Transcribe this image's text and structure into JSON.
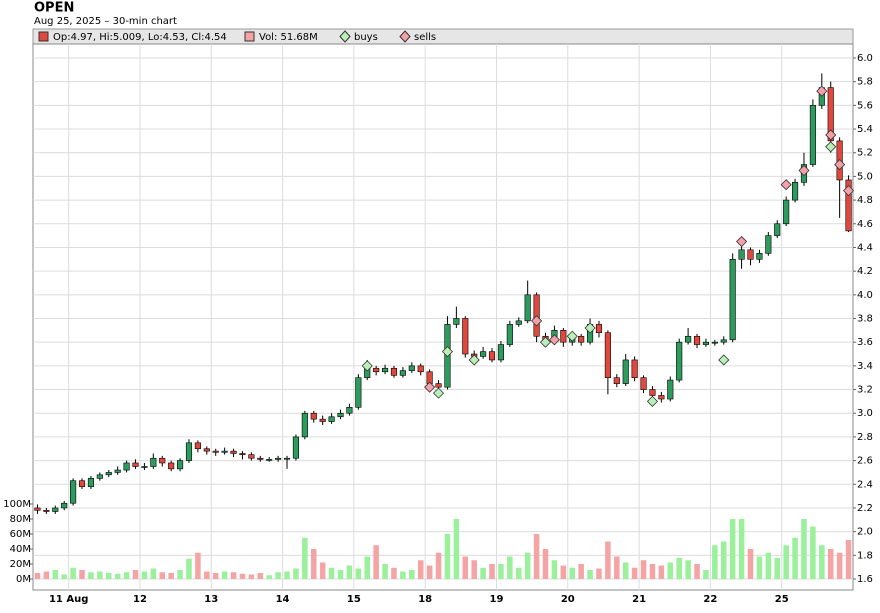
{
  "chart_data": {
    "type": "candlestick",
    "title": "OPEN",
    "subtitle": "Aug 25, 2025 – 30-min chart",
    "legend": [
      "Op:4.97, Hi:5.009, Lo:4.53, Cl:4.54",
      "Vol: 51.68M",
      "buys",
      "sells"
    ],
    "up_color": "#2e9b5e",
    "down_color": "#e0483e",
    "volume_up_color": "#9bf09b",
    "volume_down_color": "#f4a4a4",
    "buy_color": "#b8f0b8",
    "sell_color": "#f4a0a8",
    "grid": true,
    "categories": [
      null,
      null,
      null,
      null,
      "11 Aug",
      null,
      null,
      null,
      null,
      null,
      null,
      null,
      "12",
      null,
      null,
      null,
      null,
      null,
      null,
      null,
      "13",
      null,
      null,
      null,
      null,
      null,
      null,
      null,
      "14",
      null,
      null,
      null,
      null,
      null,
      null,
      null,
      "15",
      null,
      null,
      null,
      null,
      null,
      null,
      null,
      "18",
      null,
      null,
      null,
      null,
      null,
      null,
      null,
      "19",
      null,
      null,
      null,
      null,
      null,
      null,
      null,
      "20",
      null,
      null,
      null,
      null,
      null,
      null,
      null,
      "21",
      null,
      null,
      null,
      null,
      null,
      null,
      null,
      "22",
      null,
      null,
      null,
      null,
      null,
      null,
      null,
      "25",
      null,
      null,
      null,
      null,
      null,
      null,
      null
    ],
    "open": [
      2.2,
      2.18,
      2.17,
      2.2,
      2.24,
      2.43,
      2.38,
      2.45,
      2.48,
      2.5,
      2.52,
      2.58,
      2.55,
      2.55,
      2.62,
      2.58,
      2.53,
      2.6,
      2.75,
      2.7,
      2.68,
      2.67,
      2.68,
      2.66,
      2.65,
      2.62,
      2.61,
      2.61,
      2.62,
      2.62,
      2.8,
      3.0,
      2.95,
      2.93,
      2.97,
      3.0,
      3.05,
      3.3,
      3.38,
      3.35,
      3.38,
      3.32,
      3.36,
      3.4,
      3.35,
      3.25,
      3.22,
      3.75,
      3.8,
      3.5,
      3.48,
      3.52,
      3.45,
      3.58,
      3.75,
      3.78,
      4.0,
      3.65,
      3.62,
      3.7,
      3.6,
      3.65,
      3.6,
      3.75,
      3.68,
      3.3,
      3.25,
      3.45,
      3.3,
      3.2,
      3.15,
      3.12,
      3.28,
      3.6,
      3.65,
      3.58,
      3.6,
      3.6,
      3.62,
      4.3,
      4.38,
      4.3,
      4.35,
      4.5,
      4.6,
      4.8,
      4.95,
      5.1,
      5.6,
      5.75,
      5.3,
      4.97
    ],
    "high": [
      2.23,
      2.2,
      2.22,
      2.26,
      2.45,
      2.45,
      2.47,
      2.5,
      2.52,
      2.55,
      2.6,
      2.61,
      2.58,
      2.66,
      2.64,
      2.6,
      2.62,
      2.78,
      2.77,
      2.72,
      2.7,
      2.71,
      2.7,
      2.68,
      2.67,
      2.64,
      2.63,
      2.64,
      2.64,
      2.82,
      3.02,
      3.02,
      2.98,
      3.0,
      3.03,
      3.08,
      3.33,
      3.45,
      3.4,
      3.41,
      3.4,
      3.39,
      3.43,
      3.42,
      3.37,
      3.28,
      3.82,
      3.9,
      3.82,
      3.53,
      3.56,
      3.55,
      3.61,
      3.78,
      3.81,
      4.12,
      4.02,
      3.68,
      3.74,
      3.72,
      3.69,
      3.67,
      3.8,
      3.78,
      3.7,
      3.33,
      3.5,
      3.48,
      3.32,
      3.23,
      3.18,
      3.31,
      3.63,
      3.72,
      3.67,
      3.63,
      3.62,
      3.65,
      4.35,
      4.45,
      4.4,
      4.38,
      4.53,
      4.63,
      4.83,
      4.98,
      5.2,
      5.65,
      5.87,
      5.8,
      5.33,
      5.009
    ],
    "low": [
      2.15,
      2.15,
      2.15,
      2.18,
      2.22,
      2.36,
      2.36,
      2.43,
      2.46,
      2.48,
      2.5,
      2.53,
      2.52,
      2.53,
      2.55,
      2.51,
      2.51,
      2.58,
      2.67,
      2.65,
      2.64,
      2.65,
      2.63,
      2.61,
      2.6,
      2.59,
      2.59,
      2.59,
      2.53,
      2.6,
      2.78,
      2.92,
      2.9,
      2.91,
      2.95,
      2.98,
      3.03,
      3.28,
      3.32,
      3.33,
      3.3,
      3.3,
      3.34,
      3.32,
      3.22,
      3.15,
      3.2,
      3.72,
      3.47,
      3.44,
      3.46,
      3.43,
      3.43,
      3.56,
      3.73,
      3.76,
      3.6,
      3.58,
      3.6,
      3.56,
      3.57,
      3.57,
      3.58,
      3.64,
      3.16,
      3.22,
      3.23,
      3.27,
      3.17,
      3.1,
      3.09,
      3.1,
      3.26,
      3.58,
      3.55,
      3.56,
      3.57,
      3.58,
      3.6,
      4.22,
      4.25,
      4.27,
      4.33,
      4.48,
      4.58,
      4.78,
      4.92,
      5.08,
      5.57,
      5.2,
      4.65,
      4.53
    ],
    "close": [
      2.18,
      2.17,
      2.2,
      2.24,
      2.43,
      2.38,
      2.45,
      2.48,
      2.5,
      2.52,
      2.58,
      2.55,
      2.55,
      2.62,
      2.58,
      2.53,
      2.6,
      2.75,
      2.7,
      2.68,
      2.67,
      2.68,
      2.66,
      2.65,
      2.62,
      2.61,
      2.61,
      2.62,
      2.62,
      2.8,
      3.0,
      2.95,
      2.93,
      2.97,
      3.0,
      3.05,
      3.3,
      3.38,
      3.35,
      3.38,
      3.32,
      3.36,
      3.4,
      3.35,
      3.25,
      3.22,
      3.75,
      3.8,
      3.5,
      3.48,
      3.52,
      3.45,
      3.58,
      3.75,
      3.78,
      4.0,
      3.65,
      3.62,
      3.7,
      3.6,
      3.65,
      3.6,
      3.75,
      3.68,
      3.3,
      3.25,
      3.45,
      3.3,
      3.2,
      3.15,
      3.12,
      3.28,
      3.6,
      3.65,
      3.58,
      3.6,
      3.6,
      3.62,
      4.3,
      4.38,
      4.3,
      4.35,
      4.5,
      4.6,
      4.8,
      4.95,
      5.1,
      5.6,
      5.75,
      5.3,
      4.97,
      4.54
    ],
    "volume": [
      8,
      10,
      12,
      6,
      15,
      12,
      9,
      10,
      8,
      7,
      9,
      12,
      10,
      14,
      9,
      8,
      12,
      27,
      35,
      10,
      8,
      10,
      9,
      7,
      6,
      8,
      5,
      9,
      10,
      14,
      55,
      40,
      22,
      15,
      12,
      18,
      14,
      30,
      45,
      20,
      15,
      10,
      12,
      25,
      18,
      35,
      60,
      80,
      30,
      25,
      15,
      20,
      20,
      30,
      15,
      35,
      60,
      40,
      25,
      18,
      15,
      20,
      12,
      14,
      50,
      30,
      22,
      15,
      25,
      20,
      18,
      22,
      28,
      25,
      20,
      12,
      45,
      50,
      80,
      80,
      40,
      30,
      35,
      28,
      45,
      55,
      80,
      70,
      45,
      40,
      35,
      52
    ],
    "buys": [
      null,
      null,
      null,
      null,
      null,
      null,
      null,
      null,
      null,
      null,
      null,
      null,
      null,
      null,
      null,
      null,
      null,
      null,
      null,
      null,
      null,
      null,
      null,
      null,
      null,
      null,
      null,
      null,
      null,
      null,
      null,
      null,
      null,
      null,
      null,
      null,
      null,
      3.4,
      null,
      null,
      null,
      null,
      null,
      null,
      null,
      3.17,
      3.52,
      null,
      null,
      3.45,
      null,
      null,
      null,
      null,
      null,
      null,
      null,
      3.6,
      null,
      null,
      3.65,
      null,
      3.72,
      null,
      null,
      null,
      null,
      null,
      null,
      3.1,
      null,
      null,
      null,
      null,
      null,
      null,
      null,
      3.45,
      null,
      null,
      null,
      null,
      null,
      null,
      null,
      null,
      null,
      null,
      null,
      5.25,
      null,
      null
    ],
    "sells": [
      null,
      null,
      null,
      null,
      null,
      null,
      null,
      null,
      null,
      null,
      null,
      null,
      null,
      null,
      null,
      null,
      null,
      null,
      null,
      null,
      null,
      null,
      null,
      null,
      null,
      null,
      null,
      null,
      null,
      null,
      null,
      null,
      null,
      null,
      null,
      null,
      null,
      null,
      null,
      null,
      null,
      null,
      null,
      null,
      3.22,
      null,
      null,
      null,
      null,
      null,
      null,
      null,
      null,
      null,
      null,
      null,
      3.78,
      null,
      3.62,
      null,
      null,
      null,
      null,
      null,
      null,
      null,
      null,
      null,
      null,
      null,
      null,
      null,
      null,
      null,
      null,
      null,
      null,
      null,
      null,
      4.45,
      null,
      null,
      null,
      null,
      4.93,
      null,
      5.05,
      null,
      5.72,
      5.35,
      5.1,
      4.88
    ],
    "ylim": [
      1.6,
      6.0
    ],
    "yticks": [
      1.6,
      1.8,
      {
        "value": 2.0,
        "label": "2.0"
      },
      2.2,
      2.4,
      2.6,
      2.8,
      {
        "value": 3.0,
        "label": "3.0"
      },
      3.2,
      3.4,
      3.6,
      3.8,
      {
        "value": 4.0,
        "label": "4.0"
      },
      4.2,
      4.4,
      4.6,
      4.8,
      {
        "value": 5.0,
        "label": "5.0"
      },
      5.2,
      5.4,
      5.6,
      5.8,
      {
        "value": 6.0,
        "label": "6.0"
      }
    ],
    "y2lim": [
      0,
      100
    ],
    "y2ticks": [
      {
        "value": 0,
        "label": "0M"
      },
      {
        "value": 20,
        "label": "20M"
      },
      {
        "value": 40,
        "label": "40M"
      },
      {
        "value": 60,
        "label": "60M"
      },
      {
        "value": 80,
        "label": "80M"
      },
      {
        "value": 100,
        "label": "100M"
      }
    ]
  }
}
